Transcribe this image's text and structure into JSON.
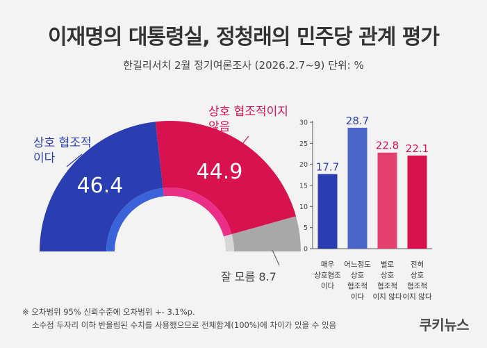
{
  "title": "이재명의 대통령실, 정청래의 민주당 관계 평가",
  "subtitle": "한길리서치 2월 정기여론조사 (2026.2.7~9) 단위: %",
  "footnote": {
    "line1": "※ 오차범위 95% 신뢰수준에 오차범위 +- 3.1%p.",
    "line2": "소수점 두자리 이하 반올림된 수치를 사용했으므로 전체합계(100%)에 차이가 있을 수 있음"
  },
  "logo": "쿠키뉴스",
  "colors": {
    "blue": "#2a3eb1",
    "red": "#d8114f",
    "gray": "#a8a8a8",
    "blue_mid": "#4a66c9",
    "red_light": "#e3406f"
  },
  "chart_data": [
    {
      "type": "pie",
      "style": "half-donut",
      "slices": [
        {
          "label_lines": [
            "상호 협조적",
            "이다"
          ],
          "value": 46.4,
          "color": "#2a3eb1",
          "inner_color": "#3b63d9"
        },
        {
          "label_lines": [
            "상호 협조적이지",
            "않음"
          ],
          "value": 44.9,
          "color": "#d8114f",
          "inner_color": "#ec2f86"
        },
        {
          "label": "잘 모름",
          "value": 8.7,
          "color": "#a8a8a8",
          "inner_color": "#d6d6d6"
        }
      ]
    },
    {
      "type": "bar",
      "categories": [
        [
          "매우",
          "상호협조",
          "이다"
        ],
        [
          "어느정도",
          "상호",
          "협조적",
          "이다"
        ],
        [
          "별로",
          "상호",
          "협조적",
          "이지 않다"
        ],
        [
          "전혀",
          "상호",
          "협조적",
          "이지 않다"
        ]
      ],
      "values": [
        17.7,
        28.7,
        22.8,
        22.1
      ],
      "colors": [
        "#2a3eb1",
        "#4a66c9",
        "#e3406f",
        "#d8114f"
      ],
      "value_colors": [
        "#2a3eb1",
        "#2a3eb1",
        "#d8114f",
        "#d8114f"
      ],
      "ylim": [
        0,
        30
      ],
      "yticks": [
        0,
        5,
        10,
        15,
        20,
        25,
        30
      ]
    }
  ]
}
